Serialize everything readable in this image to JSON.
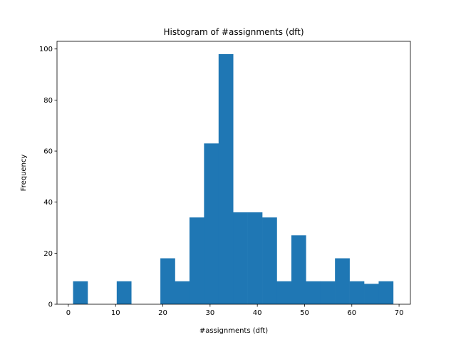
{
  "chart_data": {
    "type": "bar",
    "title": "Histogram of #assignments (dft)",
    "xlabel": "#assignments (dft)",
    "ylabel": "Frequency",
    "xlim": [
      -2.4,
      72.4
    ],
    "ylim": [
      0,
      103
    ],
    "xticks": [
      0,
      10,
      20,
      30,
      40,
      50,
      60,
      70
    ],
    "yticks": [
      0,
      20,
      40,
      60,
      80,
      100
    ],
    "bin_start": 1,
    "bin_width": 3.08,
    "values": [
      9,
      0,
      0,
      9,
      0,
      0,
      18,
      9,
      34,
      63,
      98,
      36,
      36,
      34,
      9,
      27,
      9,
      9,
      18,
      9,
      8,
      9
    ],
    "bar_color": "#1f77b4",
    "grid": false
  }
}
